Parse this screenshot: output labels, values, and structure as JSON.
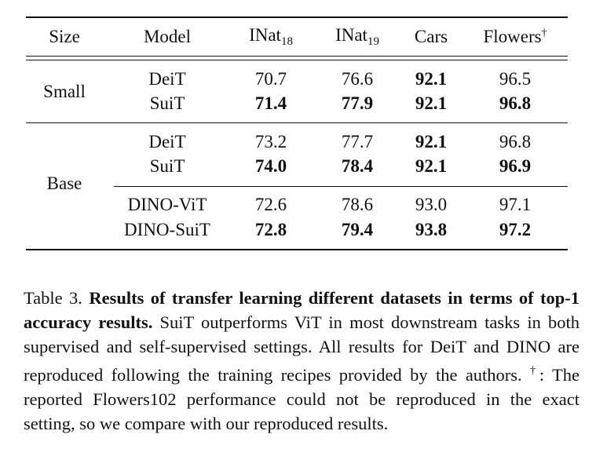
{
  "table": {
    "header": [
      {
        "text": "Size"
      },
      {
        "text": "Model"
      },
      {
        "text": "INat",
        "sub": "18"
      },
      {
        "text": "INat",
        "sub": "19"
      },
      {
        "text": "Cars"
      },
      {
        "text": "Flowers",
        "sup": "†"
      }
    ],
    "groups": [
      {
        "size": "Small",
        "rows": [
          {
            "model": "DeiT",
            "values": [
              "70.7",
              "76.6",
              "92.1",
              "96.5"
            ],
            "bold": [
              false,
              false,
              true,
              false
            ]
          },
          {
            "model": "SuiT",
            "values": [
              "71.4",
              "77.9",
              "92.1",
              "96.8"
            ],
            "bold": [
              true,
              true,
              true,
              true
            ]
          }
        ]
      },
      {
        "size": "Base",
        "rows": [
          {
            "model": "DeiT",
            "values": [
              "73.2",
              "77.7",
              "92.1",
              "96.8"
            ],
            "bold": [
              false,
              false,
              true,
              false
            ]
          },
          {
            "model": "SuiT",
            "values": [
              "74.0",
              "78.4",
              "92.1",
              "96.9"
            ],
            "bold": [
              true,
              true,
              true,
              true
            ]
          },
          {
            "model": "DINO-ViT",
            "values": [
              "72.6",
              "78.6",
              "93.0",
              "97.1"
            ],
            "bold": [
              false,
              false,
              false,
              false
            ]
          },
          {
            "model": "DINO-SuiT",
            "values": [
              "72.8",
              "79.4",
              "93.8",
              "97.2"
            ],
            "bold": [
              true,
              true,
              true,
              true
            ]
          }
        ]
      }
    ]
  },
  "caption": {
    "label": "Table 3.",
    "title": "Results of transfer learning different datasets in terms of top-1 accuracy results.",
    "text_1": "SuiT outperforms ViT in most downstream tasks in both supervised and self-supervised settings. All results for DeiT and DINO are reproduced following the training recipes provided by the authors.",
    "dagger": "†",
    "text_2": ": The reported Flowers102 performance could not be reproduced in the exact setting, so we compare with our reproduced results."
  }
}
